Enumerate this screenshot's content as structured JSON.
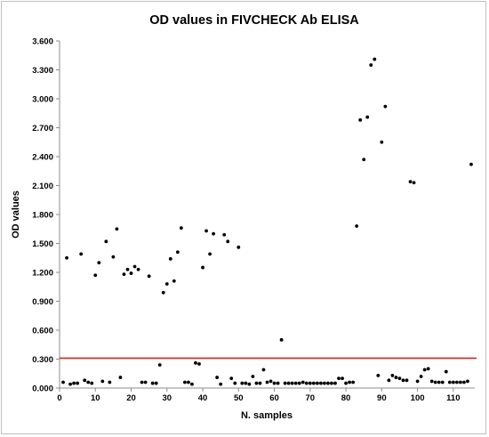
{
  "chart_data": {
    "type": "scatter",
    "title": "OD values in FIVCHECK Ab ELISA",
    "xlabel": "N. samples",
    "ylabel": "OD values",
    "xlim": [
      0,
      116
    ],
    "ylim": [
      0,
      3.6
    ],
    "xticks": [
      0,
      10,
      20,
      30,
      40,
      50,
      60,
      70,
      80,
      90,
      100,
      110
    ],
    "yticks": [
      "0.000",
      "0.300",
      "0.600",
      "0.900",
      "1.200",
      "1.500",
      "1.800",
      "2.100",
      "2.400",
      "2.700",
      "3.000",
      "3.300",
      "3.600"
    ],
    "grid": false,
    "legend": "none",
    "marker_color": "#000000",
    "cutoff": {
      "y": 0.31,
      "color": "#e02020"
    },
    "points": [
      [
        1,
        0.06
      ],
      [
        2,
        1.35
      ],
      [
        3,
        0.04
      ],
      [
        4,
        0.05
      ],
      [
        5,
        0.05
      ],
      [
        6,
        1.39
      ],
      [
        7,
        0.08
      ],
      [
        8,
        0.06
      ],
      [
        9,
        0.05
      ],
      [
        10,
        1.17
      ],
      [
        11,
        1.3
      ],
      [
        12,
        0.07
      ],
      [
        13,
        1.52
      ],
      [
        14,
        0.06
      ],
      [
        15,
        1.36
      ],
      [
        16,
        1.65
      ],
      [
        17,
        0.11
      ],
      [
        18,
        1.18
      ],
      [
        19,
        1.23
      ],
      [
        20,
        1.19
      ],
      [
        21,
        1.26
      ],
      [
        22,
        1.23
      ],
      [
        23,
        0.06
      ],
      [
        24,
        0.06
      ],
      [
        25,
        1.16
      ],
      [
        26,
        0.05
      ],
      [
        27,
        0.05
      ],
      [
        28,
        0.24
      ],
      [
        29,
        0.99
      ],
      [
        30,
        1.08
      ],
      [
        31,
        1.34
      ],
      [
        32,
        1.11
      ],
      [
        33,
        1.41
      ],
      [
        34,
        1.66
      ],
      [
        35,
        0.06
      ],
      [
        36,
        0.06
      ],
      [
        37,
        0.04
      ],
      [
        38,
        0.26
      ],
      [
        39,
        0.25
      ],
      [
        40,
        1.25
      ],
      [
        41,
        1.63
      ],
      [
        42,
        1.39
      ],
      [
        43,
        1.6
      ],
      [
        44,
        0.11
      ],
      [
        45,
        0.04
      ],
      [
        46,
        1.59
      ],
      [
        47,
        1.52
      ],
      [
        48,
        0.1
      ],
      [
        49,
        0.05
      ],
      [
        50,
        1.46
      ],
      [
        51,
        0.05
      ],
      [
        52,
        0.05
      ],
      [
        53,
        0.04
      ],
      [
        54,
        0.12
      ],
      [
        55,
        0.05
      ],
      [
        56,
        0.05
      ],
      [
        57,
        0.19
      ],
      [
        58,
        0.06
      ],
      [
        59,
        0.07
      ],
      [
        60,
        0.05
      ],
      [
        61,
        0.05
      ],
      [
        62,
        0.5
      ],
      [
        63,
        0.05
      ],
      [
        64,
        0.05
      ],
      [
        65,
        0.05
      ],
      [
        66,
        0.05
      ],
      [
        67,
        0.05
      ],
      [
        68,
        0.06
      ],
      [
        69,
        0.05
      ],
      [
        70,
        0.05
      ],
      [
        71,
        0.05
      ],
      [
        72,
        0.05
      ],
      [
        73,
        0.05
      ],
      [
        74,
        0.05
      ],
      [
        75,
        0.05
      ],
      [
        76,
        0.05
      ],
      [
        77,
        0.05
      ],
      [
        78,
        0.1
      ],
      [
        79,
        0.1
      ],
      [
        80,
        0.05
      ],
      [
        81,
        0.06
      ],
      [
        82,
        0.06
      ],
      [
        83,
        1.68
      ],
      [
        84,
        2.78
      ],
      [
        85,
        2.37
      ],
      [
        86,
        2.81
      ],
      [
        87,
        3.35
      ],
      [
        88,
        3.41
      ],
      [
        89,
        0.13
      ],
      [
        90,
        2.55
      ],
      [
        91,
        2.92
      ],
      [
        92,
        0.08
      ],
      [
        93,
        0.13
      ],
      [
        94,
        0.11
      ],
      [
        95,
        0.1
      ],
      [
        96,
        0.08
      ],
      [
        97,
        0.08
      ],
      [
        98,
        2.14
      ],
      [
        99,
        2.13
      ],
      [
        100,
        0.07
      ],
      [
        101,
        0.12
      ],
      [
        102,
        0.19
      ],
      [
        103,
        0.2
      ],
      [
        104,
        0.07
      ],
      [
        105,
        0.06
      ],
      [
        106,
        0.06
      ],
      [
        107,
        0.06
      ],
      [
        108,
        0.17
      ],
      [
        109,
        0.06
      ],
      [
        110,
        0.06
      ],
      [
        111,
        0.06
      ],
      [
        112,
        0.06
      ],
      [
        113,
        0.06
      ],
      [
        114,
        0.07
      ],
      [
        115,
        2.32
      ]
    ]
  }
}
